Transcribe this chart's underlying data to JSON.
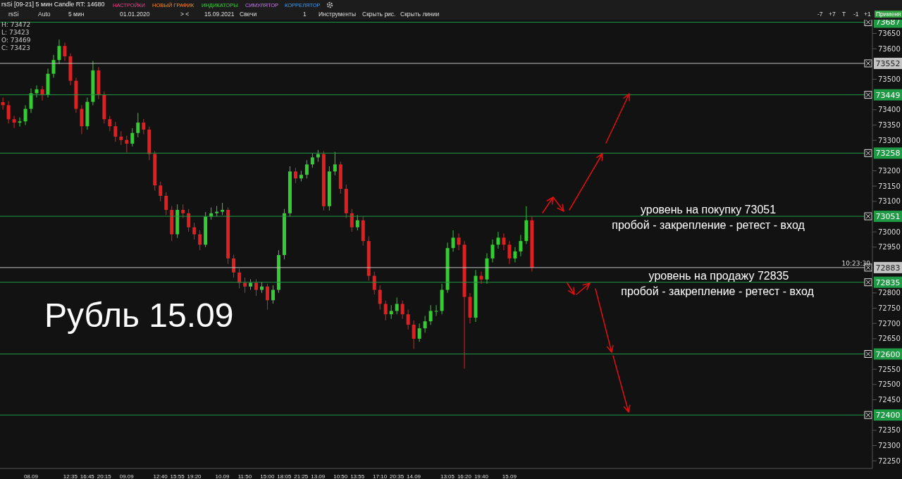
{
  "chart_data": {
    "type": "candlestick",
    "title": "rsSi [09-21] 5 мин Candle RT: 14680",
    "categories": [
      null,
      null,
      null,
      null,
      null,
      "08.09",
      null,
      null,
      null,
      null,
      null,
      null,
      "12:35",
      null,
      null,
      "16:45",
      null,
      null,
      "20:15",
      null,
      null,
      null,
      "09.09",
      null,
      null,
      null,
      null,
      null,
      "12:40",
      null,
      null,
      "15:55",
      null,
      null,
      "19:20",
      null,
      null,
      null,
      null,
      "10.09",
      null,
      null,
      null,
      "11:50",
      null,
      null,
      null,
      "15:00",
      null,
      null,
      "18:05",
      null,
      null,
      "21:25",
      null,
      null,
      "13.09",
      null,
      null,
      null,
      "10:50",
      null,
      null,
      "13:55",
      null,
      null,
      null,
      "17:10",
      null,
      null,
      "20:35",
      null,
      null,
      "14.09",
      null,
      null,
      null,
      null,
      null,
      "13:05",
      null,
      null,
      "16:20",
      null,
      null,
      "19:40",
      null,
      null,
      null,
      null,
      "15.09",
      null,
      null,
      null,
      null,
      null,
      null,
      null,
      null,
      null,
      null,
      null,
      null,
      null,
      null,
      null,
      null,
      null,
      null,
      null,
      null,
      null,
      null,
      null,
      null,
      null,
      null,
      null,
      null,
      null,
      null,
      null,
      null,
      null,
      null,
      null,
      null,
      null,
      null,
      null,
      null,
      null,
      null,
      null,
      null,
      null,
      null,
      null,
      null,
      null,
      null,
      null,
      null,
      null,
      null,
      null,
      null,
      null,
      null,
      null,
      null,
      null,
      null,
      null,
      null
    ],
    "ohlc": [
      [
        73425,
        73440,
        73400,
        73415
      ],
      [
        73415,
        73428,
        73355,
        73369
      ],
      [
        73369,
        73380,
        73340,
        73358
      ],
      [
        73358,
        73375,
        73345,
        73362
      ],
      [
        73362,
        73415,
        73350,
        73403
      ],
      [
        73403,
        73470,
        73390,
        73454
      ],
      [
        73454,
        73480,
        73440,
        73467
      ],
      [
        73467,
        73478,
        73430,
        73449
      ],
      [
        73449,
        73535,
        73440,
        73518
      ],
      [
        73518,
        73580,
        73505,
        73563
      ],
      [
        73563,
        73630,
        73550,
        73609
      ],
      [
        73609,
        73620,
        73560,
        73575
      ],
      [
        73575,
        73585,
        73480,
        73495
      ],
      [
        73495,
        73505,
        73390,
        73403
      ],
      [
        73403,
        73415,
        73320,
        73346
      ],
      [
        73346,
        73440,
        73335,
        73426
      ],
      [
        73426,
        73560,
        73415,
        73529
      ],
      [
        73529,
        73540,
        73435,
        73449
      ],
      [
        73449,
        73460,
        73355,
        73369
      ],
      [
        73369,
        73380,
        73330,
        73346
      ],
      [
        73346,
        73360,
        73295,
        73312
      ],
      [
        73312,
        73330,
        73285,
        73301
      ],
      [
        73301,
        73315,
        73260,
        73289
      ],
      [
        73289,
        73340,
        73280,
        73324
      ],
      [
        73324,
        73390,
        73310,
        73358
      ],
      [
        73358,
        73370,
        73320,
        73335
      ],
      [
        73335,
        73345,
        73235,
        73255
      ],
      [
        73255,
        73265,
        73135,
        73152
      ],
      [
        73152,
        73165,
        73100,
        73118
      ],
      [
        73118,
        73130,
        73055,
        73072
      ],
      [
        73072,
        73085,
        72970,
        72992
      ],
      [
        72992,
        73090,
        72980,
        73072
      ],
      [
        73072,
        73090,
        73045,
        73061
      ],
      [
        73061,
        73075,
        73000,
        73015
      ],
      [
        73015,
        73030,
        72975,
        72992
      ],
      [
        72992,
        73005,
        72940,
        72958
      ],
      [
        72958,
        73065,
        72950,
        73050
      ],
      [
        73050,
        73080,
        73040,
        73061
      ],
      [
        73061,
        73085,
        73050,
        73066
      ],
      [
        73066,
        73095,
        73055,
        73072
      ],
      [
        73072,
        73080,
        72895,
        72913
      ],
      [
        72913,
        72925,
        72850,
        72867
      ],
      [
        72867,
        72880,
        72815,
        72833
      ],
      [
        72833,
        72850,
        72800,
        72821
      ],
      [
        72821,
        72845,
        72810,
        72833
      ],
      [
        72833,
        72845,
        72790,
        72810
      ],
      [
        72810,
        72835,
        72800,
        72821
      ],
      [
        72821,
        72830,
        72745,
        72776
      ],
      [
        72776,
        72825,
        72765,
        72810
      ],
      [
        72810,
        72940,
        72800,
        72924
      ],
      [
        72924,
        73075,
        72910,
        73061
      ],
      [
        73061,
        73215,
        73050,
        73198
      ],
      [
        73198,
        73210,
        73160,
        73175
      ],
      [
        73175,
        73200,
        73165,
        73187
      ],
      [
        73187,
        73235,
        73175,
        73221
      ],
      [
        73221,
        73258,
        73210,
        73244
      ],
      [
        73244,
        73268,
        73230,
        73255
      ],
      [
        73255,
        73265,
        73070,
        73084
      ],
      [
        73084,
        73215,
        73070,
        73198
      ],
      [
        73198,
        73262,
        73185,
        73221
      ],
      [
        73221,
        73230,
        73125,
        73141
      ],
      [
        73141,
        73155,
        73045,
        73061
      ],
      [
        73061,
        73075,
        73000,
        73015
      ],
      [
        73015,
        73055,
        73005,
        73038
      ],
      [
        73038,
        73050,
        72955,
        72970
      ],
      [
        72970,
        72985,
        72840,
        72856
      ],
      [
        72856,
        72870,
        72795,
        72810
      ],
      [
        72810,
        72825,
        72745,
        72764
      ],
      [
        72764,
        72775,
        72710,
        72730
      ],
      [
        72730,
        72760,
        72715,
        72741
      ],
      [
        72741,
        72785,
        72730,
        72764
      ],
      [
        72764,
        72775,
        72715,
        72730
      ],
      [
        72730,
        72745,
        72680,
        72696
      ],
      [
        72696,
        72710,
        72616,
        72650
      ],
      [
        72650,
        72700,
        72640,
        72684
      ],
      [
        72684,
        72725,
        72670,
        72707
      ],
      [
        72707,
        72760,
        72695,
        72741
      ],
      [
        72741,
        72760,
        72725,
        72741
      ],
      [
        72741,
        72830,
        72730,
        72810
      ],
      [
        72810,
        72965,
        72800,
        72947
      ],
      [
        72947,
        73005,
        72935,
        72981
      ],
      [
        72981,
        72995,
        72940,
        72958
      ],
      [
        72958,
        72970,
        72552,
        72787
      ],
      [
        72787,
        72800,
        72700,
        72719
      ],
      [
        72719,
        72875,
        72705,
        72856
      ],
      [
        72856,
        72870,
        72830,
        72844
      ],
      [
        72844,
        72930,
        72830,
        72913
      ],
      [
        72913,
        72975,
        72900,
        72958
      ],
      [
        72958,
        73000,
        72945,
        72981
      ],
      [
        72981,
        72995,
        72940,
        72958
      ],
      [
        72958,
        72970,
        72895,
        72913
      ],
      [
        72913,
        72950,
        72900,
        72936
      ],
      [
        72936,
        72990,
        72920,
        72970
      ],
      [
        72970,
        73084,
        72960,
        73038
      ],
      [
        73038,
        73050,
        72870,
        72883
      ],
      null,
      null,
      null,
      null,
      null,
      null,
      null,
      null,
      null,
      null,
      null,
      null,
      null,
      null,
      null,
      null,
      null,
      null,
      null,
      null,
      null,
      null,
      null,
      null,
      null,
      null,
      null,
      null,
      null,
      null,
      null,
      null,
      null,
      null,
      null,
      null,
      null,
      null,
      null,
      null,
      null,
      null,
      null,
      null,
      null,
      null,
      null,
      null,
      null,
      null,
      null,
      null,
      null,
      null,
      null,
      null,
      null,
      null,
      null,
      null
    ],
    "ylim": [
      72225,
      73695
    ],
    "yticks": [
      72250,
      72300,
      72350,
      72450,
      72500,
      72550,
      72650,
      72700,
      72750,
      72800,
      72950,
      73000,
      73100,
      73150,
      73200,
      73300,
      73350,
      73400,
      73500,
      73600,
      73650
    ],
    "grid": false,
    "legend": false,
    "ref_lines": [
      {
        "axis": "y",
        "value": 73687,
        "label": "73687",
        "color": "#1f9a44"
      },
      {
        "axis": "y",
        "value": 73552,
        "label": "73552",
        "color": "#c4c4c4"
      },
      {
        "axis": "y",
        "value": 73449,
        "label": "73449",
        "color": "#1f9a44"
      },
      {
        "axis": "y",
        "value": 73258,
        "label": "73258",
        "color": "#1f9a44"
      },
      {
        "axis": "y",
        "value": 73051,
        "label": "73051",
        "color": "#1f9a44"
      },
      {
        "axis": "y",
        "value": 72883,
        "label": "72883",
        "color": "#c4c4c4"
      },
      {
        "axis": "y",
        "value": 72835,
        "label": "72835",
        "color": "#1f9a44"
      },
      {
        "axis": "y",
        "value": 72600,
        "label": "72600",
        "color": "#1f9a44"
      },
      {
        "axis": "y",
        "value": 72400,
        "label": "72400",
        "color": "#1f9a44"
      }
    ],
    "annotations": [
      {
        "text": "уровень на покупку 73051",
        "y": 73051
      },
      {
        "text": "пробой - закрепление - ретест - вход",
        "y": 73051
      },
      {
        "text": "уровень на продажу 72835",
        "y": 72835
      },
      {
        "text": "пробой - закрепление - ретест - вход",
        "y": 72835
      },
      "Рубль 15.09",
      "H: 73472",
      "L: 73423",
      "O: 73469",
      "C: 73423",
      "10:23:30",
      "НАСТРОЙКИ",
      "НОВЫЙ ГРАФИК",
      "ИНДИКАТОРЫ",
      "СИМУЛЯТОР",
      "КОРРЕЛЯТОР",
      "rsSi",
      "Auto",
      "5 мин",
      "01.01.2020",
      "> <",
      "15.09.2021",
      "Свечи",
      "1",
      "Инструменты",
      "Скрыть рис.",
      "Скрыть линии",
      "-7",
      "+7",
      "T",
      "-1",
      "+1",
      "Применя"
    ]
  }
}
